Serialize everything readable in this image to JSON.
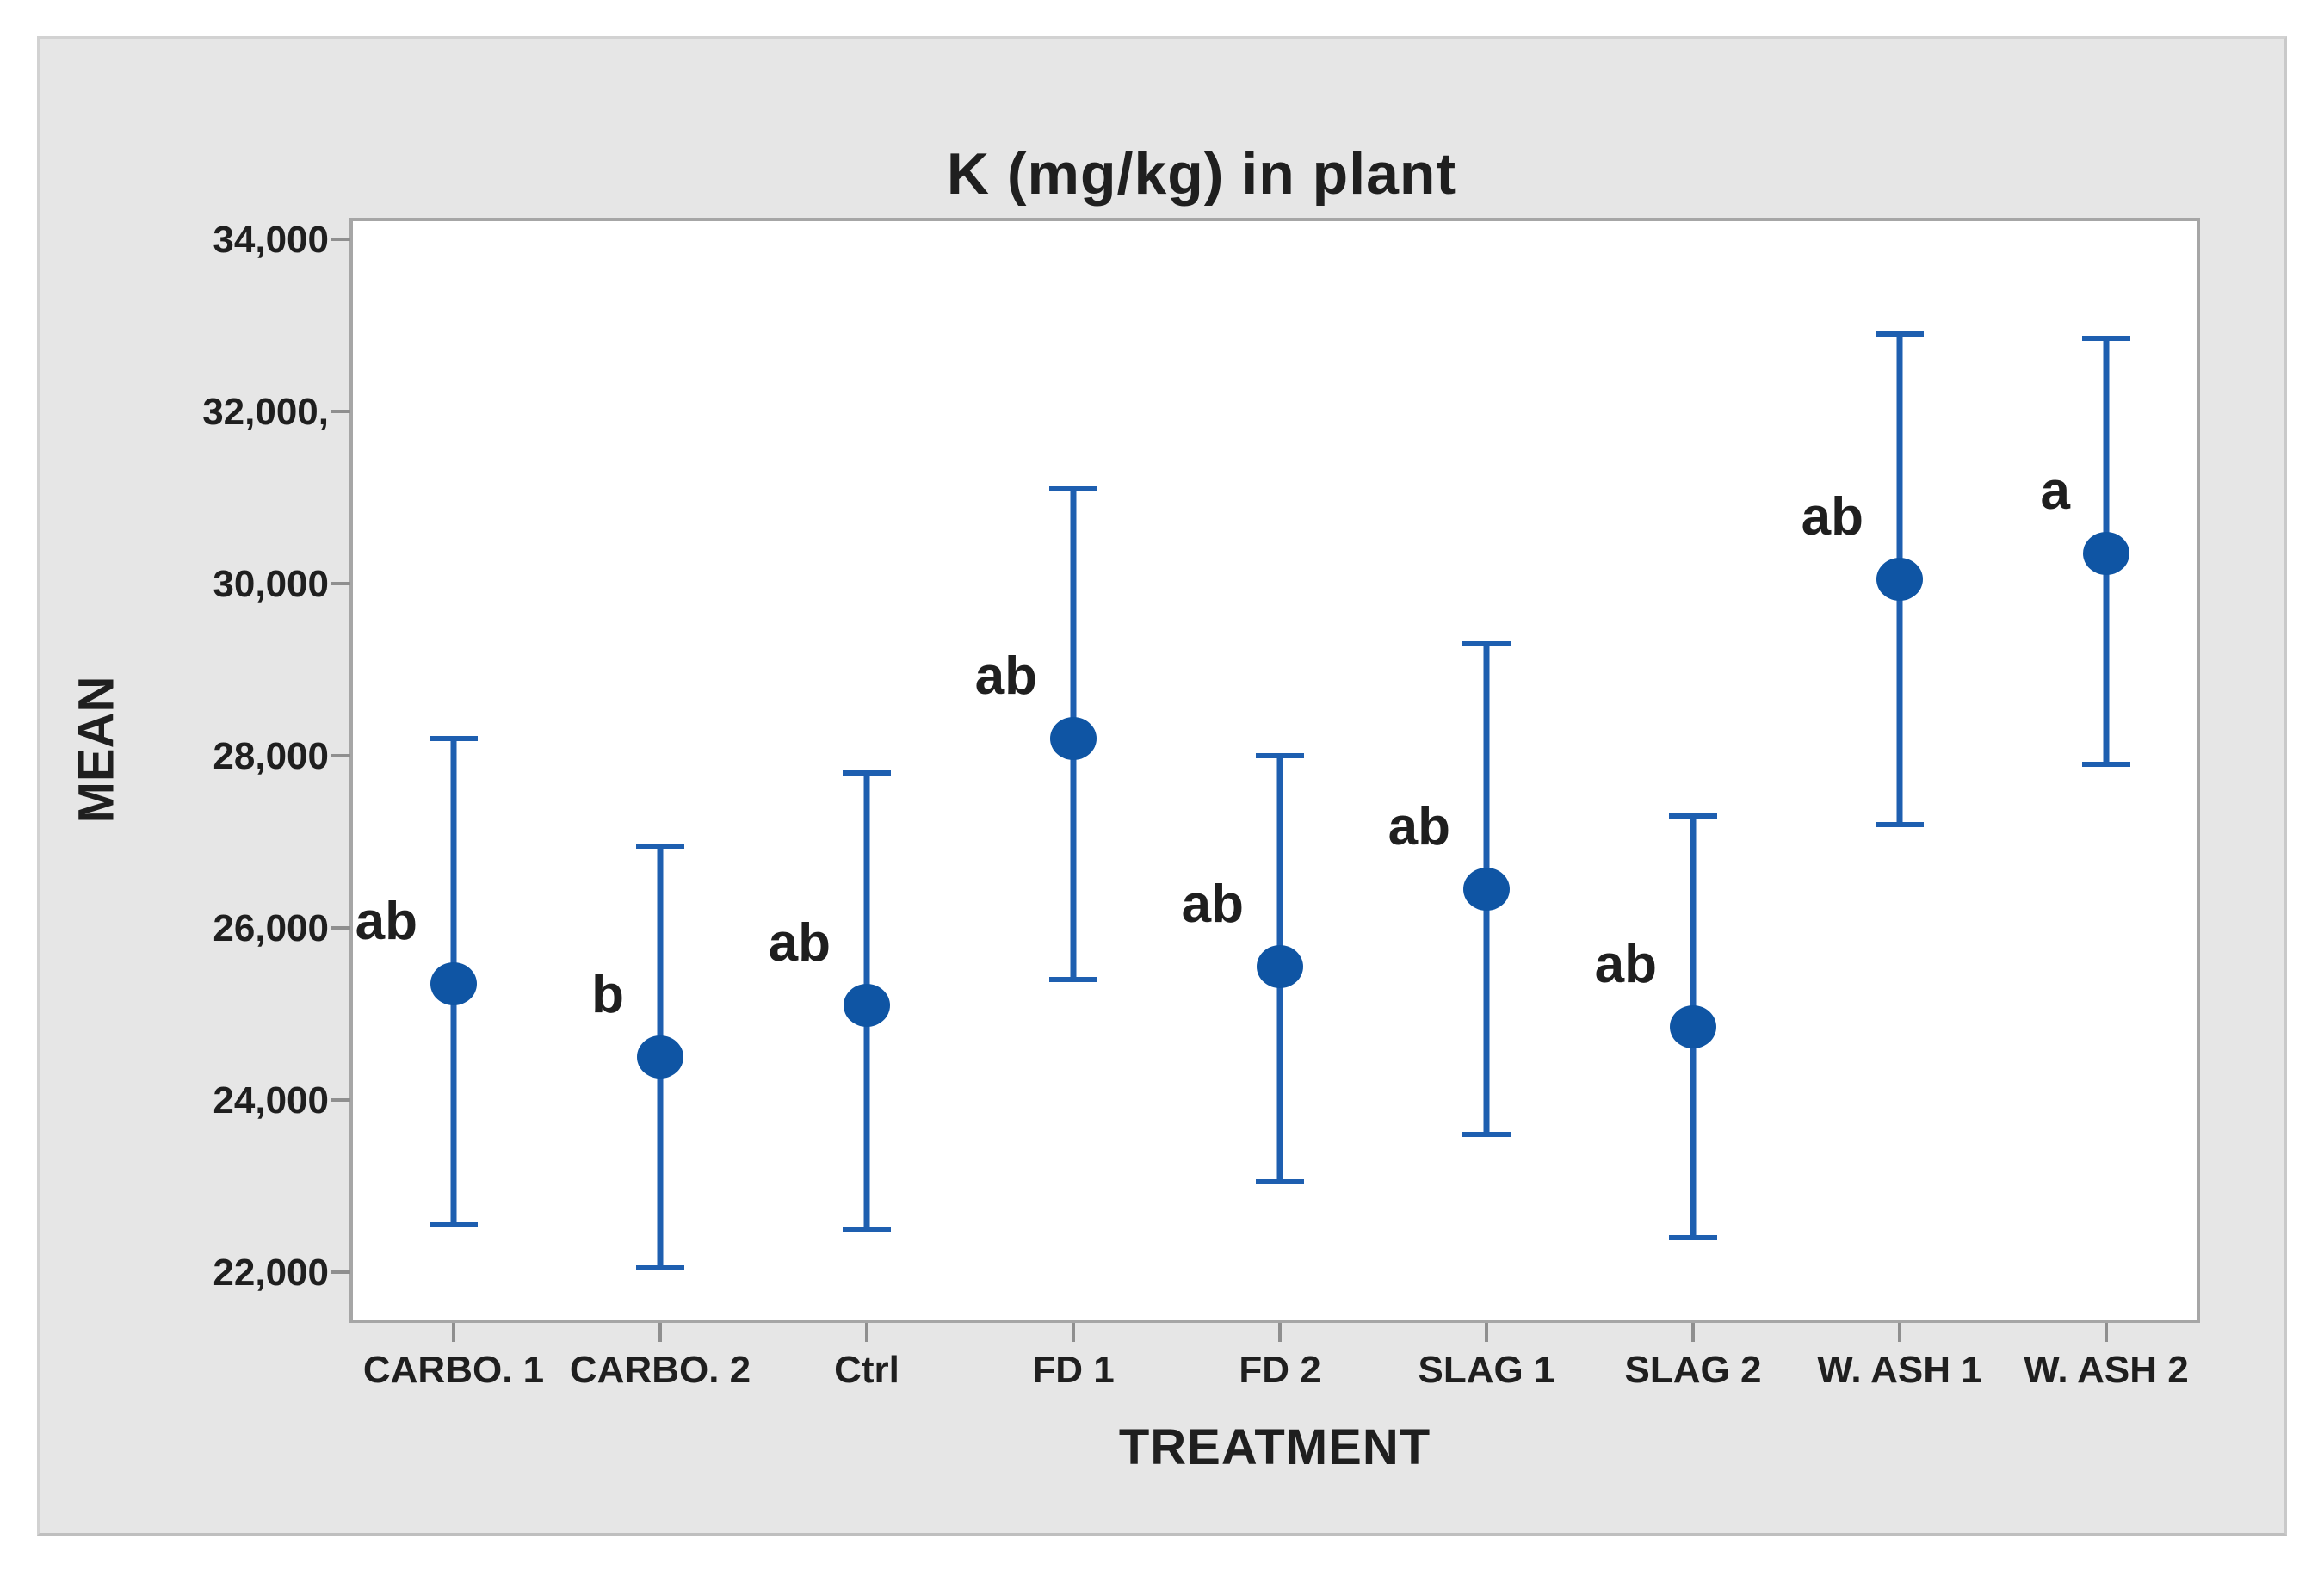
{
  "figure": {
    "title": "K (mg/kg) in plant",
    "x_axis_title": "TREATMENT",
    "y_axis_title": "MEAN"
  },
  "chart_data": {
    "type": "scatter",
    "subtype": "interval-plot-means-with-error-bars",
    "title": "K (mg/kg) in plant",
    "xlabel": "TREATMENT",
    "ylabel": "MEAN",
    "grid": false,
    "legend": "none",
    "ylim": [
      21420,
      34230
    ],
    "y_ticks": [
      {
        "value": 34000,
        "label": "34,000"
      },
      {
        "value": 32000,
        "label": "32,000,"
      },
      {
        "value": 30000,
        "label": "30,000"
      },
      {
        "value": 28000,
        "label": "28,000"
      },
      {
        "value": 26000,
        "label": "26,000"
      },
      {
        "value": 24000,
        "label": "24,000"
      },
      {
        "value": 22000,
        "label": "22,000"
      }
    ],
    "categories": [
      "CARBO. 1",
      "CARBO. 2",
      "Ctrl",
      "FD 1",
      "FD 2",
      "SLAG 1",
      "SLAG 2",
      "W. ASH 1",
      "W. ASH 2"
    ],
    "points": [
      {
        "category": "CARBO. 1",
        "mean": 25350,
        "lower": 22550,
        "upper": 28200,
        "letter": "ab"
      },
      {
        "category": "CARBO. 2",
        "mean": 24500,
        "lower": 22050,
        "upper": 26950,
        "letter": "b"
      },
      {
        "category": "Ctrl",
        "mean": 25100,
        "lower": 22500,
        "upper": 27800,
        "letter": "ab"
      },
      {
        "category": "FD 1",
        "mean": 28200,
        "lower": 25400,
        "upper": 31100,
        "letter": "ab"
      },
      {
        "category": "FD 2",
        "mean": 25550,
        "lower": 23050,
        "upper": 28000,
        "letter": "ab"
      },
      {
        "category": "SLAG 1",
        "mean": 26450,
        "lower": 23600,
        "upper": 29300,
        "letter": "ab"
      },
      {
        "category": "SLAG 2",
        "mean": 24850,
        "lower": 22400,
        "upper": 27300,
        "letter": "ab"
      },
      {
        "category": "W. ASH 1",
        "mean": 30050,
        "lower": 27200,
        "upper": 32900,
        "letter": "ab"
      },
      {
        "category": "W. ASH 2",
        "mean": 30350,
        "lower": 27900,
        "upper": 32850,
        "letter": "a"
      }
    ],
    "colors": {
      "marker": "#0f55a4",
      "error_bar": "#1e5fb0",
      "text": "#1f1f1f",
      "plot_border": "#a6a6a6",
      "tick_mark": "#8f8f8f",
      "panel_bg": "#e6e6e6",
      "plot_bg": "#ffffff",
      "page_bg": "#ffffff"
    }
  }
}
